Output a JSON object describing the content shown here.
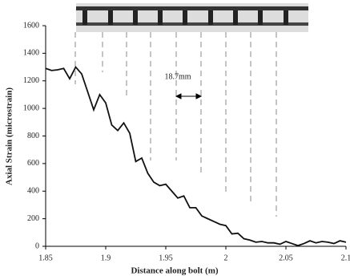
{
  "chart_data": {
    "type": "line",
    "annotation": "18.7mm",
    "x_label": "Distance along bolt (m)",
    "y_label": "Axial Strain (microstrain)",
    "xlim": [
      1.85,
      2.1
    ],
    "xticks": [
      1.85,
      1.9,
      1.95,
      2,
      2.05,
      2.1
    ],
    "ylim": [
      0,
      1600
    ],
    "yticks": [
      0,
      200,
      400,
      600,
      800,
      1000,
      1200,
      1400,
      1600
    ],
    "series": [
      {
        "color": "#111111",
        "x": [
          1.85,
          1.855,
          1.86,
          1.865,
          1.87,
          1.875,
          1.88,
          1.885,
          1.89,
          1.895,
          1.9,
          1.905,
          1.91,
          1.915,
          1.92,
          1.925,
          1.93,
          1.935,
          1.94,
          1.945,
          1.95,
          1.955,
          1.96,
          1.965,
          1.97,
          1.975,
          1.98,
          1.985,
          1.99,
          1.995,
          2,
          2.005,
          2.01,
          2.015,
          2.02,
          2.025,
          2.03,
          2.035,
          2.04,
          2.045,
          2.05,
          2.055,
          2.06,
          2.065,
          2.07,
          2.075,
          2.08,
          2.085,
          2.09,
          2.095,
          2.1
        ],
        "values": [
          1290,
          1275,
          1280,
          1290,
          1215,
          1300,
          1250,
          1120,
          990,
          1100,
          1040,
          880,
          840,
          895,
          820,
          615,
          640,
          530,
          465,
          440,
          450,
          400,
          350,
          365,
          280,
          280,
          220,
          200,
          180,
          160,
          150,
          90,
          95,
          55,
          45,
          30,
          35,
          25,
          25,
          15,
          35,
          20,
          5,
          20,
          40,
          25,
          35,
          30,
          20,
          40,
          30
        ]
      }
    ]
  }
}
